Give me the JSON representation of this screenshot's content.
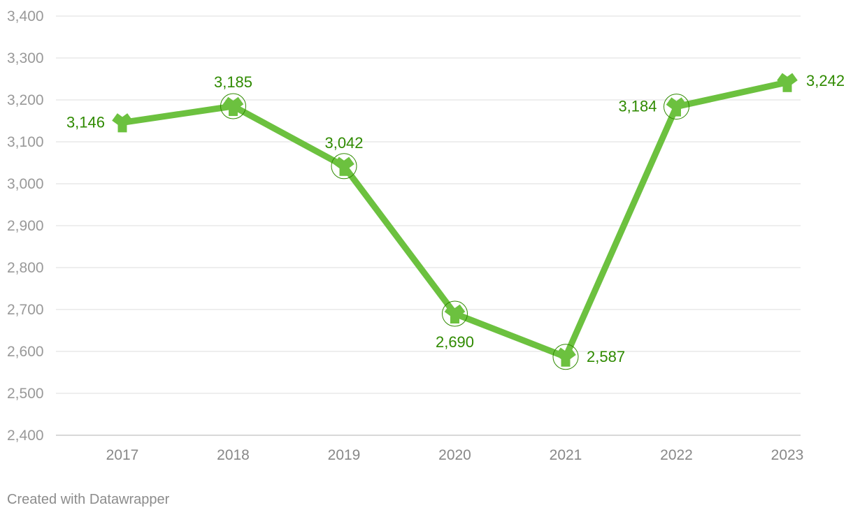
{
  "chart_data": {
    "type": "line",
    "categories": [
      "2017",
      "2018",
      "2019",
      "2020",
      "2021",
      "2022",
      "2023"
    ],
    "series": [
      {
        "values": [
          3146,
          3185,
          3042,
          2690,
          2587,
          3184,
          3242
        ],
        "data_labels": [
          "3,146",
          "3,185",
          "3,042",
          "2,690",
          "2,587",
          "3,184",
          "3,242"
        ]
      }
    ],
    "ylim": [
      2400,
      3400
    ],
    "yticks": [
      2400,
      2500,
      2600,
      2700,
      2800,
      2900,
      3000,
      3100,
      3200,
      3300,
      3400
    ],
    "ytick_labels": [
      "2,400",
      "2,500",
      "2,600",
      "2,700",
      "2,800",
      "2,900",
      "3,000",
      "3,100",
      "3,200",
      "3,300",
      "3,400"
    ],
    "grid": true,
    "colors": {
      "line": "#6cc13f",
      "label": "#2f8a00",
      "grid": "#e3e3e3",
      "baseline": "#cccccc",
      "tick_text": "#999999",
      "marker_outline": "#2f8a00"
    }
  },
  "footer": {
    "credit": "Created with Datawrapper"
  }
}
